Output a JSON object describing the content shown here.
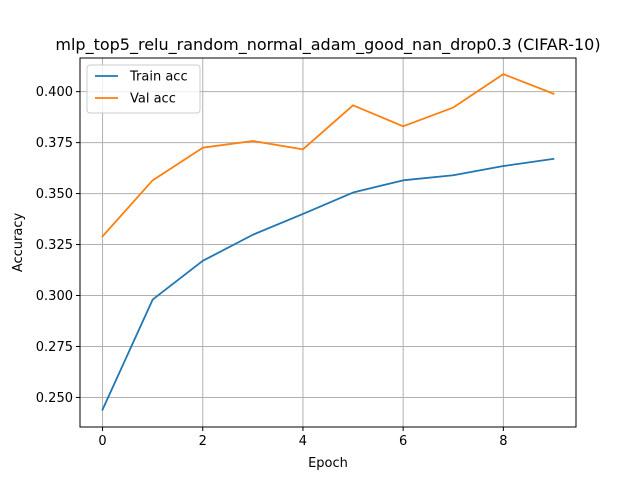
{
  "chart_data": {
    "type": "line",
    "title": "mlp_top5_relu_random_normal_adam_good_nan_drop0.3 (CIFAR-10)",
    "xlabel": "Epoch",
    "ylabel": "Accuracy",
    "x": [
      0,
      1,
      2,
      3,
      4,
      5,
      6,
      7,
      8,
      9
    ],
    "xlim": [
      -0.45,
      9.45
    ],
    "ylim": [
      0.2355,
      0.4165
    ],
    "xticks": [
      0,
      2,
      4,
      6,
      8
    ],
    "xtick_labels": [
      "0",
      "2",
      "4",
      "6",
      "8"
    ],
    "yticks": [
      0.25,
      0.275,
      0.3,
      0.325,
      0.35,
      0.375,
      0.4
    ],
    "ytick_labels": [
      "0.250",
      "0.275",
      "0.300",
      "0.325",
      "0.350",
      "0.375",
      "0.400"
    ],
    "grid": true,
    "legend_position": "top-left",
    "series": [
      {
        "name": "Train acc",
        "color": "#1f77b4",
        "values": [
          0.244,
          0.298,
          0.317,
          0.3298,
          0.34,
          0.3505,
          0.3565,
          0.359,
          0.3635,
          0.367
        ]
      },
      {
        "name": "Val acc",
        "color": "#ff7f0e",
        "values": [
          0.329,
          0.3565,
          0.3725,
          0.3758,
          0.3717,
          0.3933,
          0.383,
          0.3922,
          0.4086,
          0.399
        ]
      }
    ]
  }
}
